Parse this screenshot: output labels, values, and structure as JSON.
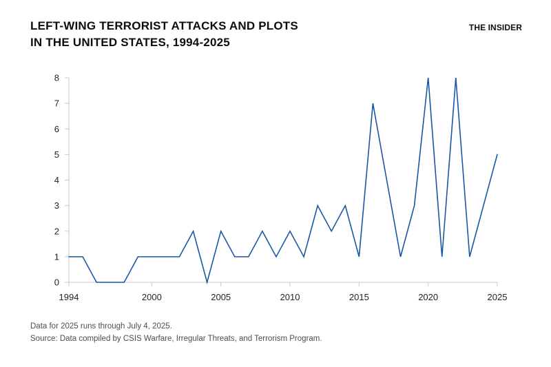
{
  "header": {
    "title_line1": "LEFT-WING TERRORIST ATTACKS AND PLOTS",
    "title_line2": "IN THE UNITED STATES, 1994-2025",
    "brand": "THE INSIDER"
  },
  "footer": {
    "note": "Data for 2025 runs through July 4, 2025.",
    "source": "Source: Data compiled by CSIS Warfare, Irregular Threats, and Terrorism Program."
  },
  "chart_data": {
    "type": "line",
    "title": "LEFT-WING TERRORIST ATTACKS AND PLOTS IN THE UNITED STATES, 1994-2025",
    "xlabel": "",
    "ylabel": "",
    "x": [
      1994,
      1995,
      1996,
      1997,
      1998,
      1999,
      2000,
      2001,
      2002,
      2003,
      2004,
      2005,
      2006,
      2007,
      2008,
      2009,
      2010,
      2011,
      2012,
      2013,
      2014,
      2015,
      2016,
      2017,
      2018,
      2019,
      2020,
      2021,
      2022,
      2023,
      2024,
      2025
    ],
    "values": [
      1,
      1,
      0,
      0,
      0,
      1,
      1,
      1,
      1,
      2,
      0,
      2,
      1,
      1,
      2,
      1,
      2,
      1,
      3,
      2,
      3,
      1,
      7,
      4,
      1,
      3,
      8,
      1,
      8,
      1,
      3,
      5
    ],
    "xlim": [
      1994,
      2025
    ],
    "ylim": [
      0,
      8
    ],
    "x_tick_labels": [
      1994,
      2000,
      2005,
      2010,
      2015,
      2020,
      2025
    ],
    "y_ticks": [
      0,
      1,
      2,
      3,
      4,
      5,
      6,
      7,
      8
    ],
    "grid": false,
    "legend": null,
    "line_color": "#1857a4",
    "axis_color": "#c9c9c9",
    "tick_label_color": "#222222"
  }
}
